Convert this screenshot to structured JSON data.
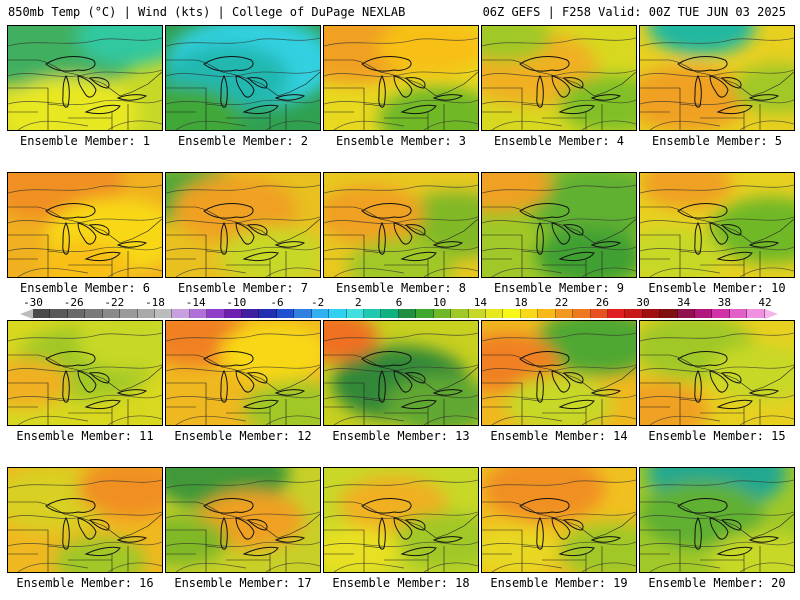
{
  "header": {
    "left": "850mb Temp (°C) | Wind (kts) | College of DuPage NEXLAB",
    "right": "06Z GEFS | F258 Valid: 00Z TUE JUN 03 2025"
  },
  "colorbar": {
    "ticks": [
      "-30",
      "-26",
      "-22",
      "-18",
      "-14",
      "-10",
      "-6",
      "-2",
      "2",
      "6",
      "10",
      "14",
      "18",
      "22",
      "26",
      "30",
      "34",
      "38",
      "42"
    ],
    "swatch_colors": [
      "#4a4a4a",
      "#5a5a5a",
      "#6a6a6a",
      "#7a7a7a",
      "#8a8a8a",
      "#9a9a9a",
      "#aaaaaa",
      "#bcbcbc",
      "#c8a0e0",
      "#b070d8",
      "#9040c8",
      "#7020b0",
      "#4020a0",
      "#2030b0",
      "#2050d0",
      "#3080e0",
      "#30b0f0",
      "#30d0f0",
      "#40e0e0",
      "#20c8b0",
      "#10b080",
      "#209040",
      "#40a830",
      "#70b828",
      "#a0c828",
      "#c8d828",
      "#e8e820",
      "#f8f818",
      "#f8d818",
      "#f8b818",
      "#f09820",
      "#f07820",
      "#e85020",
      "#e02020",
      "#c81818",
      "#a01010",
      "#801010",
      "#901050",
      "#b01880",
      "#d030a8",
      "#e060c8",
      "#f090e0"
    ]
  },
  "panels": [
    {
      "label": "Ensemble Member: 1",
      "base": "#c8d828",
      "blobs": [
        [
          "#40b060",
          0.3,
          0.15,
          0.6
        ],
        [
          "#30c8a0",
          0.8,
          0.1,
          0.35
        ],
        [
          "#e8e820",
          0.4,
          0.85,
          0.45
        ]
      ]
    },
    {
      "label": "Ensemble Member: 2",
      "base": "#30a050",
      "blobs": [
        [
          "#30d0e0",
          0.55,
          0.35,
          0.55
        ],
        [
          "#20b8b0",
          0.4,
          0.5,
          0.4
        ],
        [
          "#40a838",
          0.1,
          0.9,
          0.4
        ]
      ]
    },
    {
      "label": "Ensemble Member: 3",
      "base": "#e8d820",
      "blobs": [
        [
          "#f0a020",
          0.2,
          0.2,
          0.45
        ],
        [
          "#70b828",
          0.75,
          0.9,
          0.4
        ],
        [
          "#f8c018",
          0.7,
          0.2,
          0.35
        ]
      ]
    },
    {
      "label": "Ensemble Member: 4",
      "base": "#d8d820",
      "blobs": [
        [
          "#f0b020",
          0.3,
          0.4,
          0.45
        ],
        [
          "#80c028",
          0.85,
          0.75,
          0.35
        ],
        [
          "#a0c828",
          0.15,
          0.1,
          0.3
        ]
      ]
    },
    {
      "label": "Ensemble Member: 5",
      "base": "#e8d020",
      "blobs": [
        [
          "#20b8a0",
          0.4,
          0.0,
          0.35
        ],
        [
          "#f0a020",
          0.3,
          0.7,
          0.4
        ],
        [
          "#a0c828",
          0.9,
          0.6,
          0.3
        ]
      ]
    },
    {
      "label": "Ensemble Member: 6",
      "base": "#f0b020",
      "blobs": [
        [
          "#f09020",
          0.3,
          0.1,
          0.45
        ],
        [
          "#f8d818",
          0.7,
          0.6,
          0.45
        ],
        [
          "#f8c018",
          0.5,
          0.9,
          0.3
        ]
      ]
    },
    {
      "label": "Ensemble Member: 7",
      "base": "#e8c020",
      "blobs": [
        [
          "#50a838",
          0.15,
          0.2,
          0.35
        ],
        [
          "#f0a020",
          0.45,
          0.35,
          0.4
        ],
        [
          "#c8d828",
          0.7,
          0.8,
          0.35
        ]
      ]
    },
    {
      "label": "Ensemble Member: 8",
      "base": "#e8c820",
      "blobs": [
        [
          "#80b828",
          0.85,
          0.5,
          0.4
        ],
        [
          "#f0a020",
          0.3,
          0.4,
          0.35
        ],
        [
          "#a0c828",
          0.5,
          0.9,
          0.35
        ]
      ]
    },
    {
      "label": "Ensemble Member: 9",
      "base": "#a0c828",
      "blobs": [
        [
          "#60b030",
          0.75,
          0.3,
          0.45
        ],
        [
          "#f0a020",
          0.1,
          0.1,
          0.35
        ],
        [
          "#40a030",
          0.7,
          0.8,
          0.35
        ]
      ]
    },
    {
      "label": "Ensemble Member: 10",
      "base": "#e8d020",
      "blobs": [
        [
          "#70b828",
          0.85,
          0.55,
          0.4
        ],
        [
          "#f0a020",
          0.3,
          0.1,
          0.3
        ],
        [
          "#c8d828",
          0.2,
          0.8,
          0.35
        ]
      ]
    },
    {
      "label": "Ensemble Member: 11",
      "base": "#d8d820",
      "blobs": [
        [
          "#a0c828",
          0.5,
          0.4,
          0.45
        ],
        [
          "#f0b020",
          0.1,
          0.6,
          0.3
        ],
        [
          "#c8d828",
          0.8,
          0.2,
          0.35
        ]
      ]
    },
    {
      "label": "Ensemble Member: 12",
      "base": "#f0b820",
      "blobs": [
        [
          "#f08020",
          0.2,
          0.15,
          0.35
        ],
        [
          "#a0c828",
          0.85,
          0.85,
          0.35
        ],
        [
          "#f8d818",
          0.7,
          0.3,
          0.35
        ]
      ]
    },
    {
      "label": "Ensemble Member: 13",
      "base": "#c8d020",
      "blobs": [
        [
          "#308838",
          0.5,
          0.6,
          0.45
        ],
        [
          "#f07020",
          0.05,
          0.15,
          0.3
        ],
        [
          "#60a830",
          0.75,
          0.8,
          0.35
        ]
      ]
    },
    {
      "label": "Ensemble Member: 14",
      "base": "#f0b820",
      "blobs": [
        [
          "#50a830",
          0.75,
          0.2,
          0.4
        ],
        [
          "#f08020",
          0.15,
          0.4,
          0.35
        ],
        [
          "#c8d828",
          0.5,
          0.8,
          0.35
        ]
      ]
    },
    {
      "label": "Ensemble Member: 15",
      "base": "#e8d020",
      "blobs": [
        [
          "#a0c828",
          0.35,
          0.25,
          0.4
        ],
        [
          "#f0a020",
          0.1,
          0.85,
          0.35
        ],
        [
          "#c8d828",
          0.8,
          0.5,
          0.35
        ]
      ]
    },
    {
      "label": "Ensemble Member: 16",
      "base": "#f0b820",
      "blobs": [
        [
          "#d8d020",
          0.3,
          0.3,
          0.4
        ],
        [
          "#f09020",
          0.8,
          0.2,
          0.35
        ],
        [
          "#a0c828",
          0.6,
          0.9,
          0.3
        ]
      ]
    },
    {
      "label": "Ensemble Member: 17",
      "base": "#c8d028",
      "blobs": [
        [
          "#409838",
          0.35,
          0.05,
          0.45
        ],
        [
          "#f0a020",
          0.55,
          0.5,
          0.35
        ],
        [
          "#80b828",
          0.1,
          0.7,
          0.3
        ]
      ]
    },
    {
      "label": "Ensemble Member: 18",
      "base": "#c8d828",
      "blobs": [
        [
          "#f0b020",
          0.45,
          0.35,
          0.35
        ],
        [
          "#a0c828",
          0.8,
          0.7,
          0.35
        ],
        [
          "#e8e020",
          0.2,
          0.8,
          0.3
        ]
      ]
    },
    {
      "label": "Ensemble Member: 19",
      "base": "#f0c020",
      "blobs": [
        [
          "#f09020",
          0.4,
          0.2,
          0.4
        ],
        [
          "#a0c828",
          0.85,
          0.8,
          0.35
        ],
        [
          "#e8d820",
          0.2,
          0.8,
          0.3
        ]
      ]
    },
    {
      "label": "Ensemble Member: 20",
      "base": "#a0c828",
      "blobs": [
        [
          "#20a890",
          0.5,
          0.05,
          0.45
        ],
        [
          "#60b030",
          0.4,
          0.45,
          0.4
        ],
        [
          "#c8d828",
          0.8,
          0.9,
          0.35
        ]
      ]
    }
  ]
}
